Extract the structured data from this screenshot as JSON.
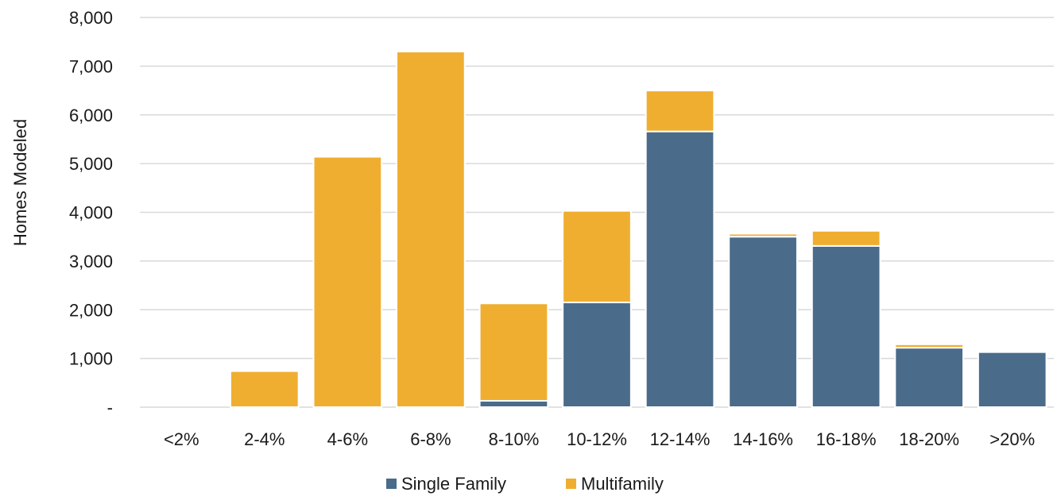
{
  "chart_data": {
    "type": "bar",
    "stacked": true,
    "title": "",
    "xlabel": "",
    "ylabel": "Homes Modeled",
    "ylim": [
      0,
      8000
    ],
    "yticks": [
      0,
      1000,
      2000,
      3000,
      4000,
      5000,
      6000,
      7000,
      8000
    ],
    "ytick_labels": [
      "-",
      "1,000",
      "2,000",
      "3,000",
      "4,000",
      "5,000",
      "6,000",
      "7,000",
      "8,000"
    ],
    "grid": true,
    "legend_position": "bottom",
    "categories": [
      "<2%",
      "2-4%",
      "4-6%",
      "6-8%",
      "8-10%",
      "10-12%",
      "12-14%",
      "14-16%",
      "16-18%",
      "18-20%",
      ">20%"
    ],
    "series": [
      {
        "name": "Single Family",
        "color": "#4a6b8a",
        "values": [
          0,
          0,
          0,
          0,
          130,
          2150,
          5660,
          3500,
          3310,
          1220,
          1130
        ]
      },
      {
        "name": "Multifamily",
        "color": "#f0ae30",
        "values": [
          0,
          740,
          5140,
          7300,
          2000,
          1880,
          840,
          60,
          310,
          70,
          0
        ]
      }
    ]
  }
}
